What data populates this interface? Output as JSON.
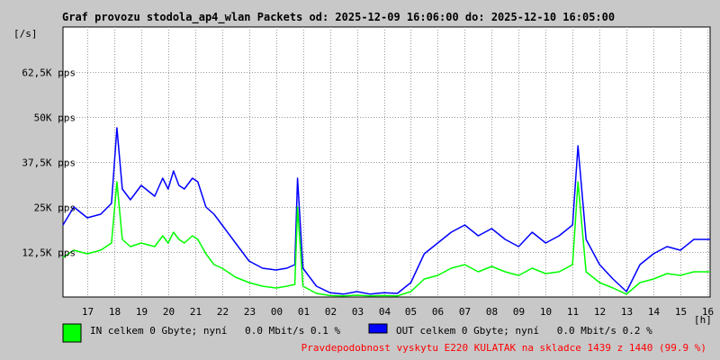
{
  "chart_data": {
    "type": "area",
    "title": "Graf provozu stodola_ap4_wlan Packets od: 2025-12-09 16:06:00 do: 2025-12-10 16:05:00",
    "ylabel": "[/s]",
    "xlabel": "[h]",
    "ylim": [
      0,
      75000
    ],
    "y_ticks": [
      12500,
      25000,
      37500,
      50000,
      62500
    ],
    "y_tick_labels": [
      "12,5K pps",
      "25K pps",
      "37,5K pps",
      "50K pps",
      "62,5K pps"
    ],
    "x_range_hours": [
      16.1,
      40.1
    ],
    "x_ticks": [
      17,
      18,
      19,
      20,
      21,
      22,
      23,
      24,
      25,
      26,
      27,
      28,
      29,
      30,
      31,
      32,
      33,
      34,
      35,
      36,
      37,
      38,
      39,
      40
    ],
    "x_tick_labels": [
      "17",
      "18",
      "19",
      "20",
      "21",
      "22",
      "23",
      "00",
      "01",
      "02",
      "03",
      "04",
      "05",
      "06",
      "07",
      "08",
      "09",
      "10",
      "11",
      "12",
      "13",
      "14",
      "15",
      "16"
    ],
    "grid": true,
    "series": [
      {
        "name": "OUT",
        "color": "#0000ff",
        "x": [
          16.1,
          16.5,
          17.0,
          17.5,
          17.9,
          18.1,
          18.3,
          18.6,
          19.0,
          19.5,
          19.8,
          20.0,
          20.2,
          20.4,
          20.6,
          20.9,
          21.1,
          21.4,
          21.7,
          22.0,
          22.5,
          23.0,
          23.5,
          24.0,
          24.4,
          24.7,
          24.8,
          25.0,
          25.5,
          26.0,
          26.5,
          27.0,
          27.5,
          28.0,
          28.5,
          29.0,
          29.5,
          30.0,
          30.5,
          31.0,
          31.5,
          32.0,
          32.5,
          33.0,
          33.5,
          34.0,
          34.5,
          35.0,
          35.2,
          35.5,
          36.0,
          36.5,
          37.0,
          37.5,
          38.0,
          38.5,
          39.0,
          39.5,
          40.1
        ],
        "values": [
          20000,
          25000,
          22000,
          23000,
          26000,
          47000,
          30000,
          27000,
          31000,
          28000,
          33000,
          30000,
          35000,
          31000,
          30000,
          33000,
          32000,
          25000,
          23000,
          20000,
          15000,
          10000,
          8000,
          7500,
          8000,
          9000,
          33000,
          8000,
          3000,
          1200,
          800,
          1500,
          800,
          1200,
          1000,
          4000,
          12000,
          15000,
          18000,
          20000,
          17000,
          19000,
          16000,
          14000,
          18000,
          15000,
          17000,
          20000,
          42000,
          16000,
          9000,
          5000,
          1500,
          9000,
          12000,
          14000,
          13000,
          16000,
          16000
        ]
      },
      {
        "name": "IN",
        "color": "#00ff00",
        "x": [
          16.1,
          16.5,
          17.0,
          17.5,
          17.9,
          18.1,
          18.3,
          18.6,
          19.0,
          19.5,
          19.8,
          20.0,
          20.2,
          20.4,
          20.6,
          20.9,
          21.1,
          21.4,
          21.7,
          22.0,
          22.5,
          23.0,
          23.5,
          24.0,
          24.4,
          24.7,
          24.8,
          25.0,
          25.5,
          26.0,
          26.5,
          27.0,
          27.5,
          28.0,
          28.5,
          29.0,
          29.5,
          30.0,
          30.5,
          31.0,
          31.5,
          32.0,
          32.5,
          33.0,
          33.5,
          34.0,
          34.5,
          35.0,
          35.2,
          35.5,
          36.0,
          36.5,
          37.0,
          37.5,
          38.0,
          38.5,
          39.0,
          39.5,
          40.1
        ],
        "values": [
          11000,
          13000,
          12000,
          13000,
          15000,
          32000,
          16000,
          14000,
          15000,
          14000,
          17000,
          15000,
          18000,
          16000,
          15000,
          17000,
          16000,
          12000,
          9000,
          8000,
          5500,
          4000,
          3000,
          2500,
          3000,
          3500,
          25000,
          3000,
          1000,
          400,
          300,
          500,
          300,
          400,
          300,
          1500,
          5000,
          6000,
          8000,
          9000,
          7000,
          8500,
          7000,
          6000,
          8000,
          6500,
          7000,
          9000,
          32000,
          7000,
          4000,
          2500,
          800,
          4000,
          5000,
          6500,
          6000,
          7000,
          7000
        ]
      }
    ]
  },
  "legend": {
    "in_text": "IN celkem 0 Gbyte; nyní   0.0 Mbit/s 0.1 %",
    "out_text": "OUT celkem 0 Gbyte; nyní   0.0 Mbit/s 0.2 %",
    "in_color": "#00ff00",
    "out_color": "#0000ff"
  },
  "footer_note": "Pravdepodobnost vyskytu E220 KULATAK na skladce 1439 z 1440 (99.9 %)",
  "footer_color": "#ff0000"
}
